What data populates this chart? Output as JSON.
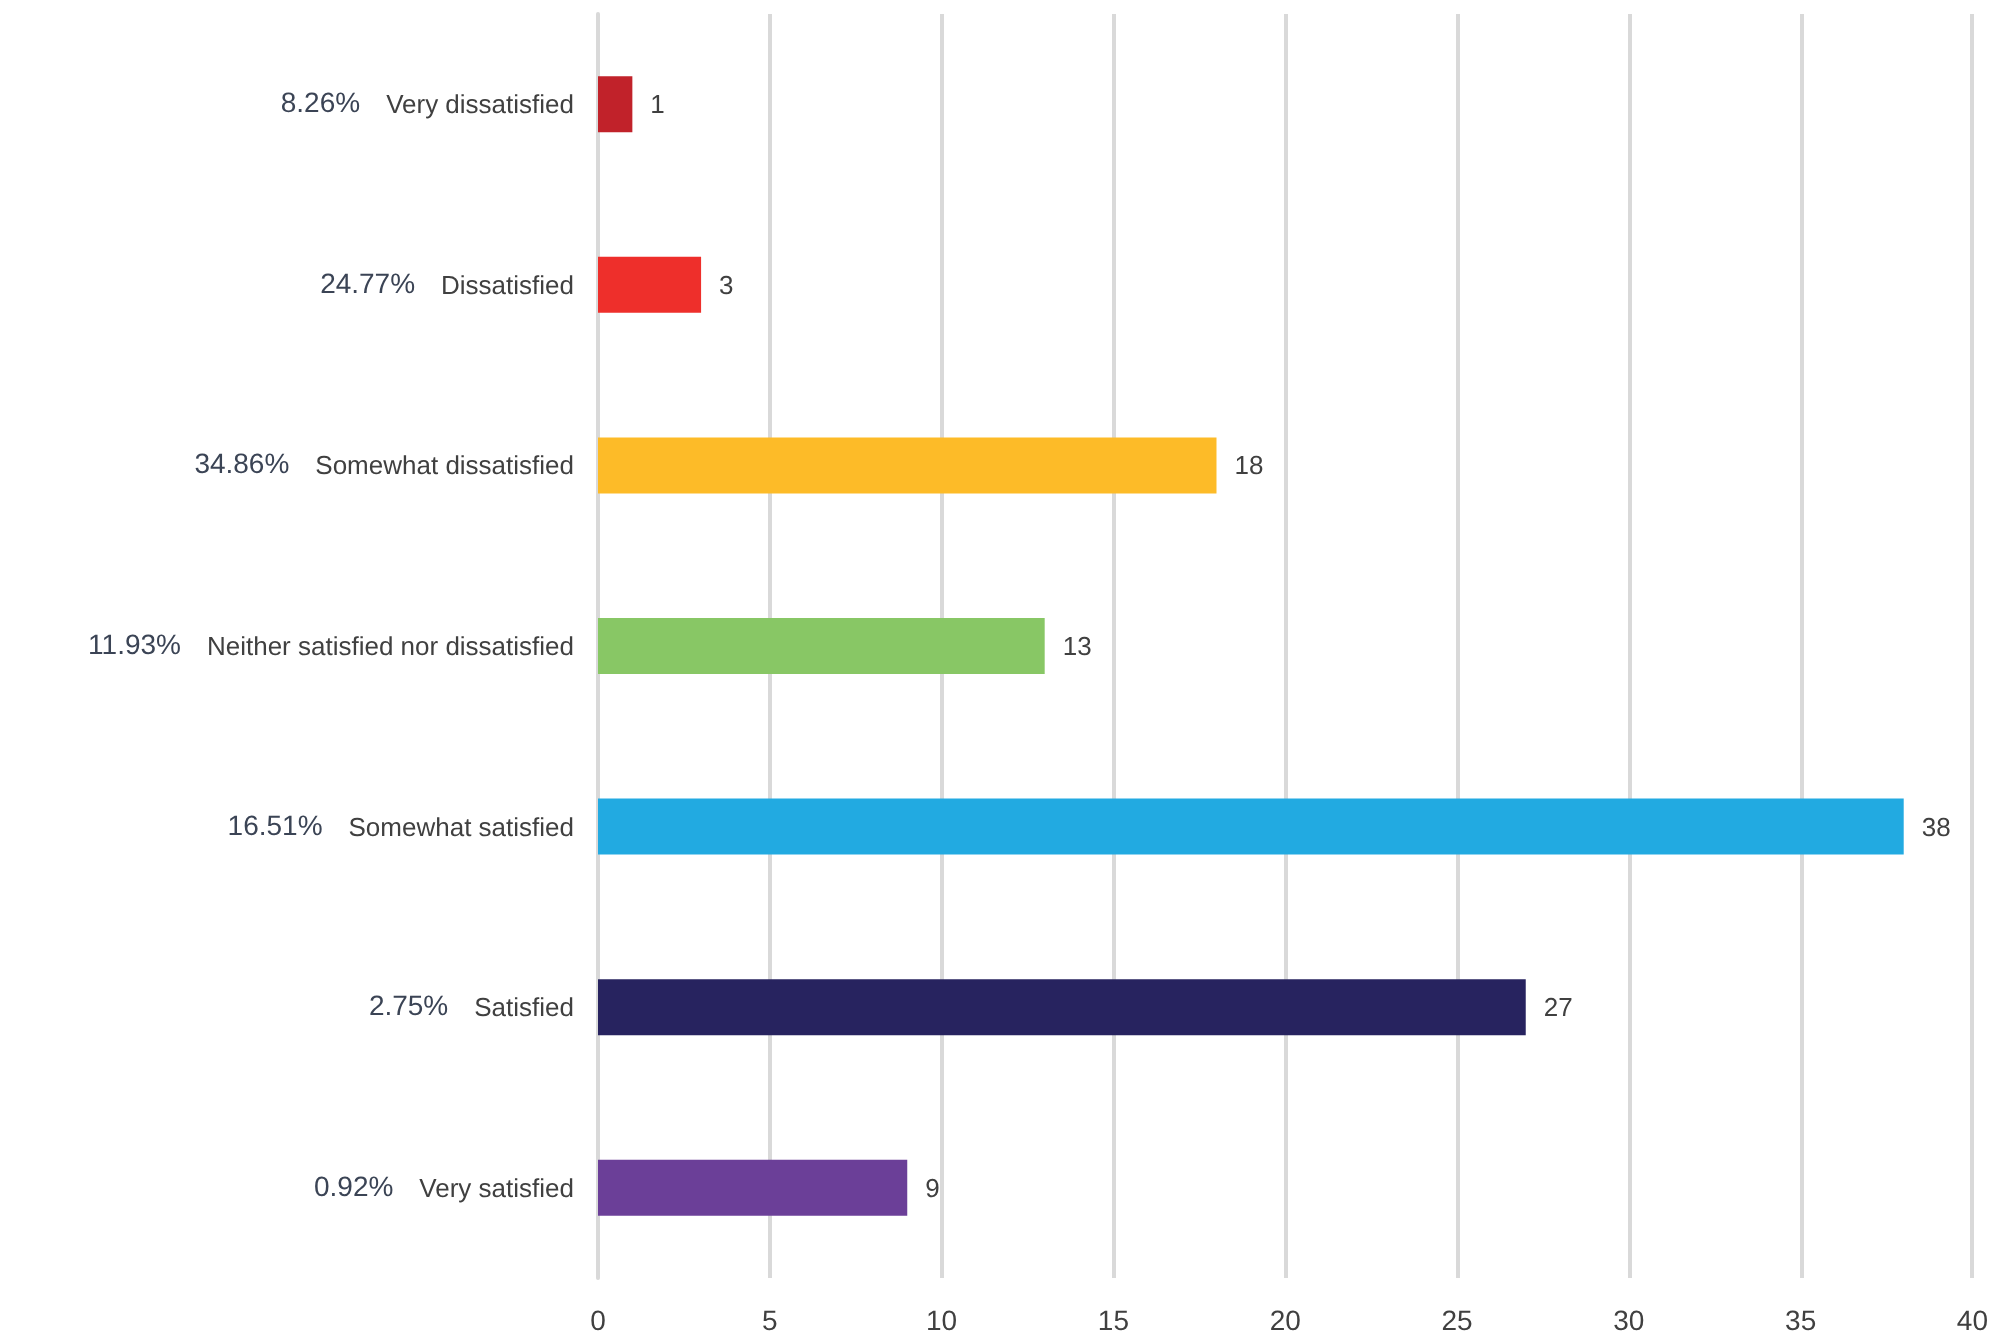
{
  "chart_data": {
    "type": "bar",
    "orientation": "horizontal",
    "categories": [
      "Very dissatisfied",
      "Dissatisfied",
      "Somewhat dissatisfied",
      "Neither satisfied nor dissatisfied",
      "Somewhat satisfied",
      "Satisfied",
      "Very satisfied"
    ],
    "values": [
      1,
      3,
      18,
      13,
      38,
      27,
      9
    ],
    "colors": [
      "#c1222a",
      "#ee2f2b",
      "#fdbb28",
      "#88c765",
      "#22aae1",
      "#27235f",
      "#6b3f98"
    ],
    "xlim": [
      0,
      40
    ],
    "xticks": [
      0,
      5,
      10,
      15,
      20,
      25,
      30,
      35,
      40
    ],
    "grid": "x",
    "data_labels": true,
    "annotations": [
      "8.26%",
      "24.77%",
      "34.86%",
      "11.93%",
      "16.51%",
      "2.75%",
      "0.92%"
    ]
  }
}
